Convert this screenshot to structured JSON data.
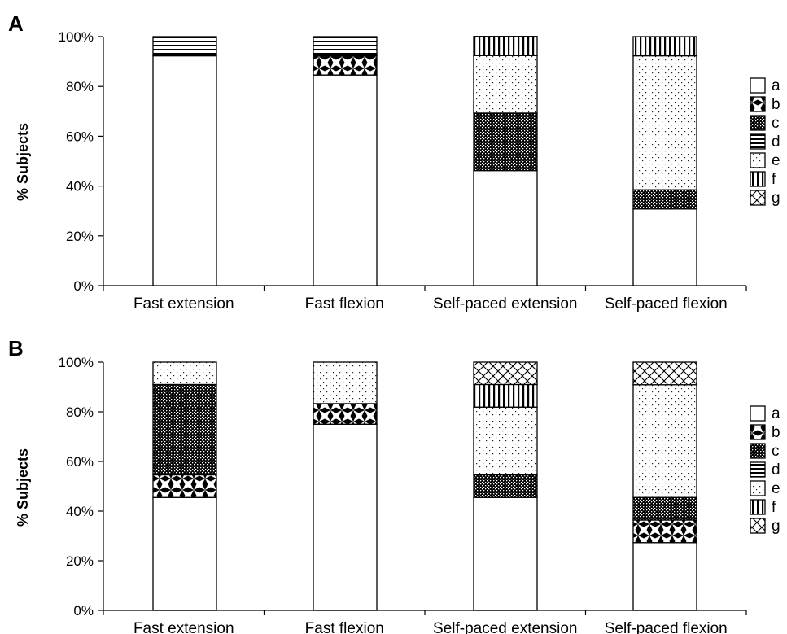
{
  "figure": {
    "domain": "Chart"
  },
  "chart_data": [
    {
      "panel": "A",
      "type": "bar",
      "stacked": true,
      "percent": true,
      "title": "",
      "xlabel": "",
      "ylabel": "% Subjects",
      "ylim": [
        0,
        100
      ],
      "yticks": [
        "0%",
        "20%",
        "40%",
        "60%",
        "80%",
        "100%"
      ],
      "categories": [
        "Fast extension",
        "Fast flexion",
        "Self-paced extension",
        "Self-paced flexion"
      ],
      "legend_position": "right",
      "series": [
        {
          "name": "a",
          "pattern": "white",
          "values": [
            92.3,
            84.6,
            46.2,
            30.8
          ]
        },
        {
          "name": "b",
          "pattern": "diamond",
          "values": [
            0,
            7.7,
            0,
            0
          ]
        },
        {
          "name": "c",
          "pattern": "dark-dots",
          "values": [
            0,
            0,
            23.1,
            7.7
          ]
        },
        {
          "name": "d",
          "pattern": "horizontal",
          "values": [
            7.7,
            7.7,
            0,
            0
          ]
        },
        {
          "name": "e",
          "pattern": "light-dots",
          "values": [
            0,
            0,
            23.1,
            53.8
          ]
        },
        {
          "name": "f",
          "pattern": "vertical",
          "values": [
            0,
            0,
            7.7,
            7.7
          ]
        },
        {
          "name": "g",
          "pattern": "crosshatch",
          "values": [
            0,
            0,
            0,
            0
          ]
        }
      ]
    },
    {
      "panel": "B",
      "type": "bar",
      "stacked": true,
      "percent": true,
      "title": "",
      "xlabel": "",
      "ylabel": "% Subjects",
      "ylim": [
        0,
        100
      ],
      "yticks": [
        "0%",
        "20%",
        "40%",
        "60%",
        "80%",
        "100%"
      ],
      "categories": [
        "Fast extension",
        "Fast flexion",
        "Self-paced extension",
        "Self-paced flexion"
      ],
      "legend_position": "right",
      "series": [
        {
          "name": "a",
          "pattern": "white",
          "values": [
            45.5,
            75.0,
            45.5,
            27.3
          ]
        },
        {
          "name": "b",
          "pattern": "diamond",
          "values": [
            9.1,
            8.3,
            0,
            9.1
          ]
        },
        {
          "name": "c",
          "pattern": "dark-dots",
          "values": [
            36.4,
            0,
            9.1,
            9.1
          ]
        },
        {
          "name": "d",
          "pattern": "horizontal",
          "values": [
            0,
            0,
            0,
            0
          ]
        },
        {
          "name": "e",
          "pattern": "light-dots",
          "values": [
            9.0,
            16.7,
            27.3,
            45.4
          ]
        },
        {
          "name": "f",
          "pattern": "vertical",
          "values": [
            0,
            0,
            9.1,
            0
          ]
        },
        {
          "name": "g",
          "pattern": "crosshatch",
          "values": [
            0,
            0,
            9.0,
            9.1
          ]
        }
      ]
    }
  ]
}
